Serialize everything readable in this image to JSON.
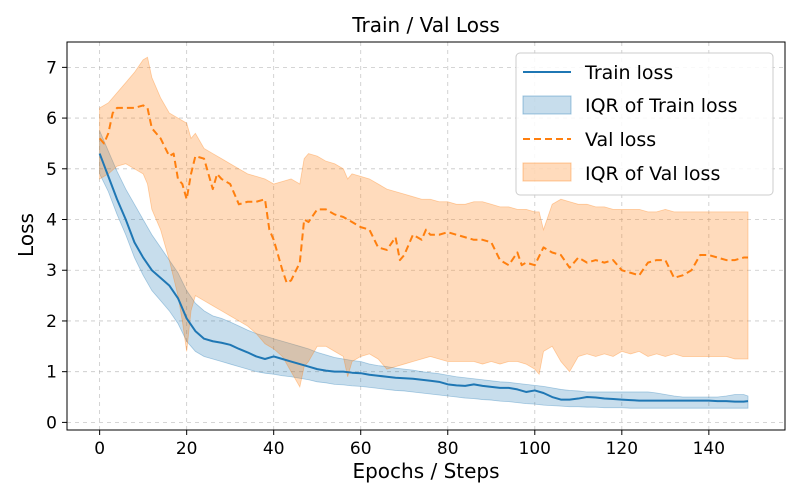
{
  "chart_data": {
    "type": "line",
    "title": "Train / Val Loss",
    "xlabel": "Epochs / Steps",
    "ylabel": "Loss",
    "xlim": [
      -7.5,
      157.5
    ],
    "ylim": [
      -0.15,
      7.5
    ],
    "xticks": [
      0,
      20,
      40,
      60,
      80,
      100,
      120,
      140
    ],
    "yticks": [
      0,
      1,
      2,
      3,
      4,
      5,
      6,
      7
    ],
    "grid": true,
    "legend_position": "top-right",
    "series": [
      {
        "name": "Train loss",
        "kind": "line",
        "style": "solid",
        "color": "#1f77b4",
        "x": [
          0,
          2,
          4,
          6,
          8,
          10,
          12,
          14,
          16,
          18,
          20,
          22,
          24,
          26,
          28,
          30,
          32,
          34,
          36,
          38,
          40,
          42,
          44,
          46,
          48,
          50,
          52,
          54,
          56,
          58,
          60,
          62,
          64,
          66,
          68,
          70,
          72,
          74,
          76,
          78,
          80,
          82,
          84,
          86,
          88,
          90,
          92,
          94,
          96,
          98,
          100,
          102,
          104,
          106,
          108,
          110,
          112,
          114,
          116,
          118,
          120,
          122,
          124,
          126,
          128,
          130,
          132,
          134,
          136,
          138,
          140,
          142,
          144,
          146,
          148,
          149
        ],
        "y": [
          5.3,
          4.85,
          4.4,
          4.0,
          3.55,
          3.25,
          3.0,
          2.85,
          2.7,
          2.45,
          2.05,
          1.8,
          1.65,
          1.6,
          1.57,
          1.53,
          1.45,
          1.38,
          1.3,
          1.25,
          1.3,
          1.25,
          1.2,
          1.15,
          1.1,
          1.05,
          1.02,
          1.0,
          1.0,
          0.98,
          0.97,
          0.94,
          0.92,
          0.9,
          0.88,
          0.87,
          0.86,
          0.84,
          0.82,
          0.8,
          0.75,
          0.73,
          0.72,
          0.75,
          0.72,
          0.7,
          0.68,
          0.68,
          0.65,
          0.6,
          0.63,
          0.58,
          0.5,
          0.45,
          0.45,
          0.47,
          0.5,
          0.49,
          0.47,
          0.46,
          0.45,
          0.44,
          0.43,
          0.43,
          0.43,
          0.43,
          0.43,
          0.43,
          0.43,
          0.43,
          0.43,
          0.42,
          0.42,
          0.41,
          0.41,
          0.42
        ]
      },
      {
        "name": "IQR of Train loss",
        "kind": "band",
        "color": "#1f77b4",
        "opacity": 0.25,
        "x": [
          0,
          2,
          4,
          6,
          8,
          10,
          12,
          14,
          16,
          18,
          20,
          22,
          24,
          26,
          28,
          30,
          32,
          34,
          36,
          38,
          40,
          42,
          44,
          46,
          48,
          50,
          52,
          54,
          56,
          58,
          60,
          62,
          64,
          66,
          68,
          70,
          72,
          74,
          76,
          78,
          80,
          82,
          84,
          86,
          88,
          90,
          92,
          94,
          96,
          98,
          100,
          102,
          104,
          106,
          108,
          110,
          112,
          114,
          116,
          118,
          120,
          122,
          124,
          126,
          128,
          130,
          132,
          134,
          136,
          138,
          140,
          142,
          144,
          146,
          148,
          149
        ],
        "low": [
          4.9,
          4.55,
          4.1,
          3.7,
          3.25,
          2.9,
          2.6,
          2.4,
          2.2,
          1.95,
          1.6,
          1.4,
          1.3,
          1.25,
          1.2,
          1.15,
          1.1,
          1.05,
          1.0,
          0.97,
          0.95,
          0.92,
          0.9,
          0.87,
          0.84,
          0.8,
          0.78,
          0.75,
          0.74,
          0.72,
          0.71,
          0.69,
          0.67,
          0.65,
          0.63,
          0.62,
          0.6,
          0.58,
          0.56,
          0.54,
          0.52,
          0.5,
          0.48,
          0.47,
          0.45,
          0.44,
          0.42,
          0.41,
          0.39,
          0.37,
          0.36,
          0.34,
          0.33,
          0.32,
          0.31,
          0.31,
          0.3,
          0.3,
          0.29,
          0.29,
          0.29,
          0.28,
          0.28,
          0.28,
          0.28,
          0.28,
          0.28,
          0.28,
          0.28,
          0.28,
          0.28,
          0.28,
          0.28,
          0.28,
          0.28,
          0.28
        ],
        "high": [
          5.75,
          5.35,
          4.95,
          4.6,
          4.3,
          4.0,
          3.7,
          3.45,
          3.2,
          2.95,
          2.6,
          2.35,
          2.2,
          2.1,
          2.05,
          1.98,
          1.9,
          1.82,
          1.75,
          1.7,
          1.65,
          1.6,
          1.55,
          1.5,
          1.45,
          1.38,
          1.33,
          1.28,
          1.25,
          1.22,
          1.2,
          1.15,
          1.12,
          1.1,
          1.07,
          1.05,
          1.03,
          1.0,
          0.98,
          0.96,
          0.93,
          0.9,
          0.88,
          0.86,
          0.84,
          0.82,
          0.8,
          0.79,
          0.77,
          0.75,
          0.73,
          0.71,
          0.68,
          0.65,
          0.63,
          0.62,
          0.6,
          0.6,
          0.6,
          0.6,
          0.6,
          0.6,
          0.6,
          0.6,
          0.58,
          0.55,
          0.52,
          0.5,
          0.5,
          0.5,
          0.5,
          0.5,
          0.52,
          0.55,
          0.55,
          0.52
        ]
      },
      {
        "name": "Val loss",
        "kind": "line",
        "style": "dashed",
        "color": "#ff7f0e",
        "x": [
          0,
          1,
          2,
          3,
          4,
          5,
          6,
          8,
          10,
          11,
          12,
          14,
          16,
          17,
          18,
          19,
          20,
          21,
          22,
          24,
          26,
          27,
          28,
          30,
          32,
          34,
          36,
          38,
          39,
          40,
          42,
          43,
          44,
          46,
          47,
          48,
          50,
          52,
          54,
          56,
          58,
          60,
          62,
          64,
          66,
          68,
          69,
          70,
          72,
          74,
          75,
          76,
          78,
          80,
          82,
          84,
          86,
          88,
          90,
          92,
          94,
          96,
          97,
          98,
          100,
          102,
          104,
          106,
          108,
          110,
          112,
          114,
          116,
          118,
          120,
          122,
          124,
          126,
          128,
          130,
          132,
          134,
          136,
          138,
          140,
          142,
          144,
          146,
          148,
          149
        ],
        "y": [
          5.6,
          5.5,
          5.7,
          6.1,
          6.2,
          6.2,
          6.2,
          6.2,
          6.25,
          6.2,
          5.8,
          5.6,
          5.25,
          5.3,
          4.8,
          4.7,
          4.4,
          4.9,
          5.25,
          5.2,
          4.6,
          4.9,
          4.8,
          4.7,
          4.3,
          4.35,
          4.35,
          4.4,
          3.8,
          3.6,
          3.0,
          2.75,
          2.8,
          3.15,
          4.0,
          3.95,
          4.2,
          4.2,
          4.1,
          4.05,
          3.95,
          3.85,
          3.8,
          3.45,
          3.4,
          3.65,
          3.2,
          3.3,
          3.7,
          3.6,
          3.8,
          3.7,
          3.7,
          3.75,
          3.7,
          3.65,
          3.6,
          3.6,
          3.55,
          3.2,
          3.1,
          3.35,
          3.1,
          3.15,
          3.1,
          3.45,
          3.35,
          3.3,
          3.05,
          3.25,
          3.15,
          3.2,
          3.15,
          3.2,
          3.0,
          2.95,
          2.9,
          3.15,
          3.2,
          3.2,
          2.85,
          2.9,
          3.0,
          3.3,
          3.3,
          3.25,
          3.2,
          3.2,
          3.25,
          3.25
        ]
      },
      {
        "name": "IQR of Val loss",
        "kind": "band",
        "color": "#ff7f0e",
        "opacity": 0.28,
        "x": [
          0,
          2,
          4,
          6,
          8,
          10,
          11,
          12,
          14,
          16,
          18,
          19,
          20,
          21,
          22,
          24,
          26,
          28,
          30,
          32,
          34,
          36,
          38,
          40,
          42,
          44,
          46,
          47,
          48,
          50,
          52,
          54,
          56,
          57,
          58,
          60,
          62,
          64,
          66,
          68,
          70,
          72,
          74,
          76,
          78,
          80,
          82,
          84,
          86,
          88,
          90,
          92,
          94,
          96,
          98,
          100,
          101,
          102,
          104,
          106,
          108,
          110,
          112,
          114,
          116,
          118,
          120,
          122,
          124,
          126,
          128,
          130,
          132,
          134,
          136,
          138,
          140,
          142,
          144,
          146,
          148,
          149
        ],
        "low": [
          4.8,
          4.9,
          5.05,
          5.1,
          5.0,
          4.9,
          4.7,
          4.2,
          3.8,
          3.2,
          2.5,
          2.0,
          1.4,
          2.2,
          2.5,
          2.4,
          2.3,
          2.2,
          2.1,
          2.0,
          1.9,
          1.75,
          1.55,
          1.45,
          1.3,
          1.0,
          0.7,
          1.1,
          1.2,
          1.5,
          1.5,
          1.4,
          1.3,
          0.9,
          1.2,
          1.3,
          1.35,
          1.25,
          1.05,
          1.1,
          1.15,
          1.2,
          1.25,
          1.3,
          1.25,
          1.2,
          1.2,
          1.2,
          1.2,
          1.15,
          1.2,
          1.15,
          1.2,
          1.2,
          1.15,
          1.05,
          0.95,
          1.4,
          1.5,
          1.2,
          1.0,
          1.3,
          1.35,
          1.3,
          1.35,
          1.3,
          1.4,
          1.35,
          1.4,
          1.3,
          1.35,
          1.3,
          1.35,
          1.3,
          1.3,
          1.3,
          1.3,
          1.3,
          1.3,
          1.25,
          1.25,
          1.25
        ],
        "high": [
          6.2,
          6.3,
          6.5,
          6.7,
          6.9,
          7.15,
          7.2,
          6.8,
          6.4,
          6.1,
          6.0,
          5.95,
          5.9,
          5.6,
          5.7,
          5.4,
          5.3,
          5.2,
          5.1,
          5.0,
          4.9,
          4.85,
          4.8,
          4.7,
          4.75,
          4.8,
          4.7,
          5.2,
          5.3,
          5.25,
          5.15,
          5.1,
          5.0,
          4.8,
          4.9,
          4.85,
          4.8,
          4.7,
          4.6,
          4.55,
          4.5,
          4.45,
          4.4,
          4.4,
          4.35,
          4.35,
          4.3,
          4.3,
          4.35,
          4.35,
          4.3,
          4.25,
          4.25,
          4.2,
          4.2,
          4.15,
          4.15,
          3.8,
          4.3,
          4.4,
          4.35,
          4.3,
          4.3,
          4.25,
          4.25,
          4.2,
          4.2,
          4.2,
          4.2,
          4.15,
          4.15,
          4.2,
          4.15,
          4.15,
          4.15,
          4.15,
          4.15,
          4.15,
          4.15,
          4.15,
          4.15,
          4.15
        ]
      }
    ]
  }
}
